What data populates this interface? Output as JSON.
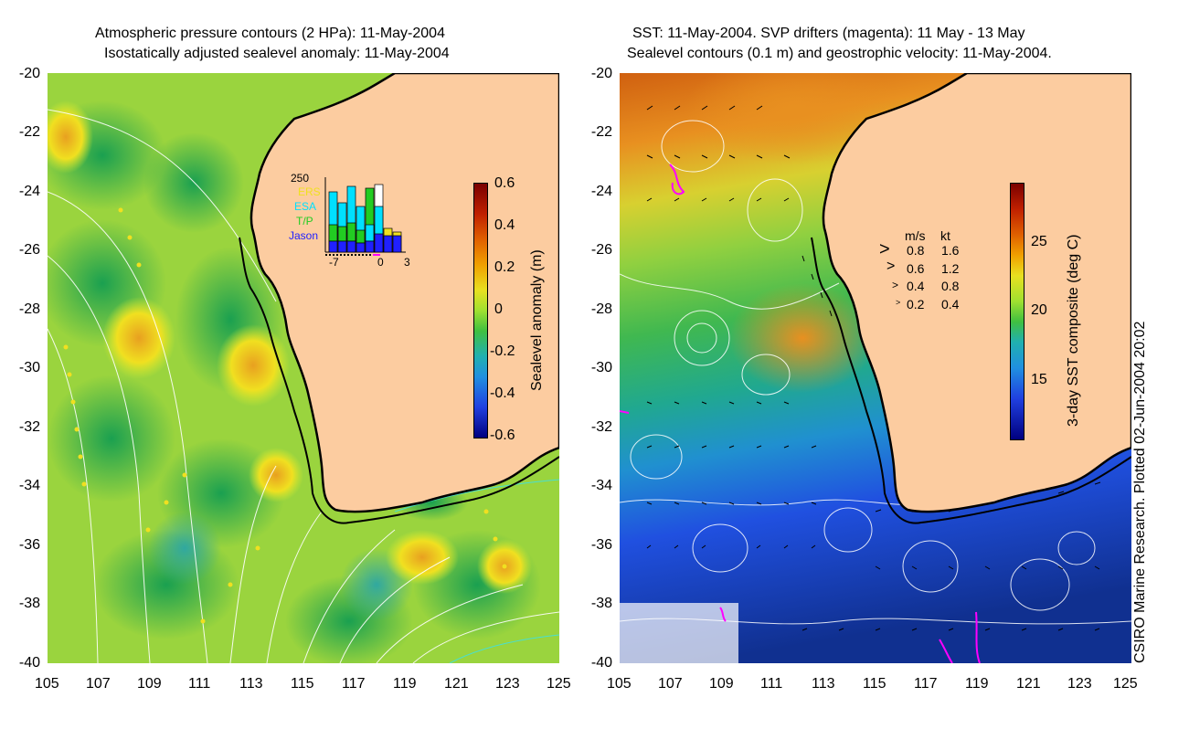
{
  "left_panel": {
    "title_line1": "Atmospheric pressure contours (2 HPa): 11-May-2004",
    "title_line2": "Isostatically adjusted sealevel anomaly: 11-May-2004",
    "colorbar_label": "Sealevel anomaly (m)",
    "colorbar_ticks": [
      "0.6",
      "0.4",
      "0.2",
      "0",
      "-0.2",
      "-0.4",
      "-0.6"
    ],
    "colors": {
      "ocean": "#8fd13c",
      "land": "#fccca0",
      "coast": "#000000"
    },
    "inset": {
      "ymax_label": "250",
      "legend": [
        "ERS",
        "ESA",
        "T/P",
        "Jason"
      ],
      "legend_colors": [
        "#f0e020",
        "#00e0ff",
        "#22cc22",
        "#2020ff"
      ],
      "x_ticks": [
        "-7",
        "0",
        "3"
      ]
    }
  },
  "right_panel": {
    "title_line1": "SST: 11-May-2004. SVP drifters (magenta): 11 May - 13 May",
    "title_line2": "Sealevel contours (0.1 m) and geostrophic velocity: 11-May-2004.",
    "colorbar_label": "3-day SST composite (deg C)",
    "colorbar_ticks": [
      "25",
      "20",
      "15"
    ],
    "velocity_legend": {
      "header_ms": "m/s",
      "header_kt": "kt",
      "rows": [
        {
          "ms": "0.8",
          "kt": "1.6"
        },
        {
          "ms": "0.6",
          "kt": "1.2"
        },
        {
          "ms": "0.4",
          "kt": "0.8"
        },
        {
          "ms": "0.2",
          "kt": "0.4"
        }
      ]
    },
    "colors": {
      "land": "#fccca0",
      "drifter": "#ff00ff"
    }
  },
  "axes": {
    "y_ticks": [
      "-20",
      "-22",
      "-24",
      "-26",
      "-28",
      "-30",
      "-32",
      "-34",
      "-36",
      "-38",
      "-40"
    ],
    "x_ticks": [
      "105",
      "107",
      "109",
      "111",
      "113",
      "115",
      "117",
      "119",
      "121",
      "123",
      "125"
    ]
  },
  "credit": "CSIRO Marine Research. Plotted 02-Jun-2004 20:02"
}
